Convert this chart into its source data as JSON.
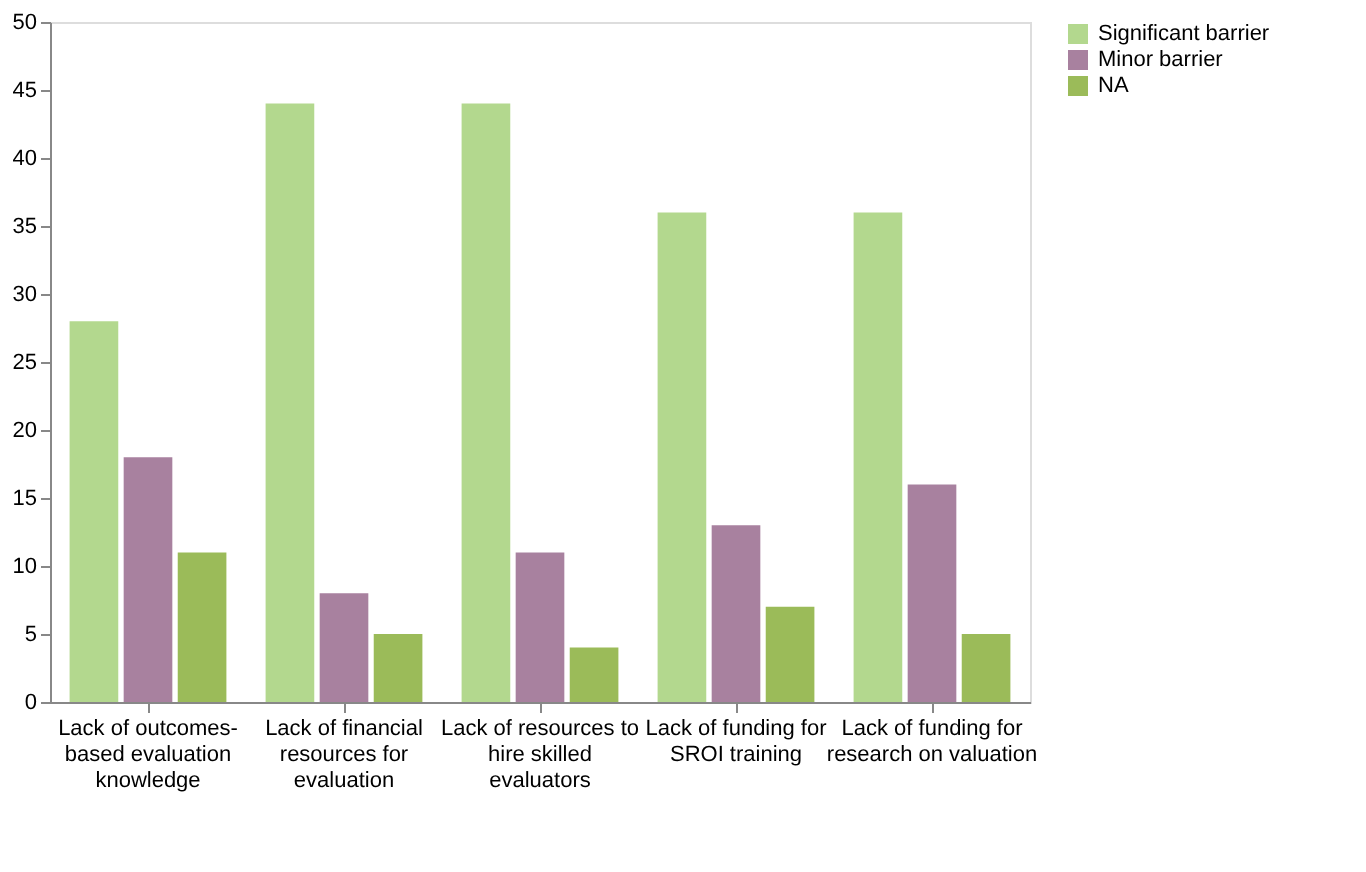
{
  "chart_data": {
    "type": "bar",
    "categories": [
      "Lack of outcomes-based evaluation knowledge",
      "Lack of financial resources for evaluation",
      "Lack of resources to hire skilled evaluators",
      "Lack of funding for SROI training",
      "Lack of funding for research on valuation"
    ],
    "series": [
      {
        "name": "Significant barrier",
        "color": "#b3d88e",
        "values": [
          28,
          44,
          44,
          36,
          36
        ]
      },
      {
        "name": "Minor barrier",
        "color": "#a8819f",
        "values": [
          18,
          8,
          11,
          13,
          16
        ]
      },
      {
        "name": "NA",
        "color": "#9bbb59",
        "values": [
          11,
          5,
          4,
          7,
          5
        ]
      }
    ],
    "ylim": [
      0,
      50
    ],
    "yticks": [
      0,
      5,
      10,
      15,
      20,
      25,
      30,
      35,
      40,
      45,
      50
    ],
    "grid": false,
    "legend": "right"
  }
}
